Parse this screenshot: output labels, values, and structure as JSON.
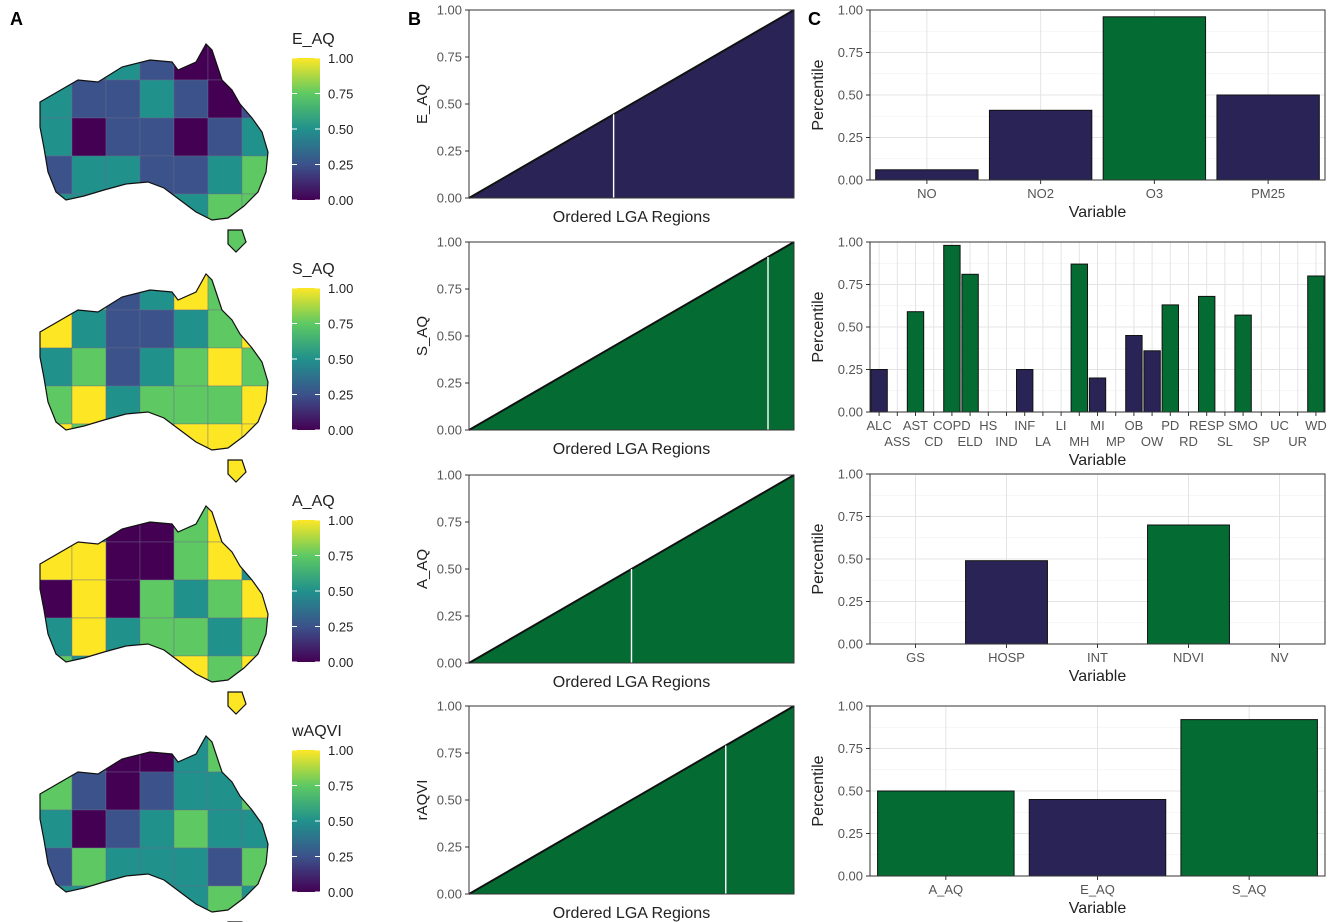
{
  "panel_letters": [
    "A",
    "B",
    "C"
  ],
  "colors": {
    "navy": "#2a2456",
    "green": "#046c33",
    "viridis": [
      "#440154",
      "#3b528b",
      "#21918c",
      "#5ec962",
      "#fde725"
    ]
  },
  "legend_ticks": [
    "1.00",
    "0.75",
    "0.50",
    "0.25",
    "0.00"
  ],
  "maps": [
    {
      "legend_title": "E_AQ"
    },
    {
      "legend_title": "S_AQ"
    },
    {
      "legend_title": "A_AQ"
    },
    {
      "legend_title": "wAQVI"
    }
  ],
  "chart_data": [
    {
      "type": "area",
      "panel": "B1",
      "ylabel": "E_AQ",
      "xlabel": "Ordered LGA Regions",
      "ylim": [
        0,
        1
      ],
      "yticks": [
        "0.00",
        "0.25",
        "0.50",
        "0.75",
        "1.00"
      ],
      "fill": "navy",
      "x": [
        0,
        1
      ],
      "y": [
        0,
        1
      ],
      "marker_x": 0.445
    },
    {
      "type": "area",
      "panel": "B2",
      "ylabel": "S_AQ",
      "xlabel": "Ordered LGA Regions",
      "ylim": [
        0,
        1
      ],
      "yticks": [
        "0.00",
        "0.25",
        "0.50",
        "0.75",
        "1.00"
      ],
      "fill": "green",
      "x": [
        0,
        1
      ],
      "y": [
        0,
        1
      ],
      "marker_x": 0.92
    },
    {
      "type": "area",
      "panel": "B3",
      "ylabel": "A_AQ",
      "xlabel": "Ordered LGA Regions",
      "ylim": [
        0,
        1
      ],
      "yticks": [
        "0.00",
        "0.25",
        "0.50",
        "0.75",
        "1.00"
      ],
      "fill": "green",
      "x": [
        0,
        1
      ],
      "y": [
        0,
        1
      ],
      "marker_x": 0.5
    },
    {
      "type": "area",
      "panel": "B4",
      "ylabel": "rAQVI",
      "xlabel": "Ordered LGA Regions",
      "ylim": [
        0,
        1
      ],
      "yticks": [
        "0.00",
        "0.25",
        "0.50",
        "0.75",
        "1.00"
      ],
      "fill": "green",
      "x": [
        0,
        1
      ],
      "y": [
        0,
        1
      ],
      "marker_x": 0.79
    },
    {
      "type": "bar",
      "panel": "C1",
      "xlabel": "Variable",
      "ylabel": "Percentile",
      "ylim": [
        0,
        1
      ],
      "yticks": [
        "0.00",
        "0.25",
        "0.50",
        "0.75",
        "1.00"
      ],
      "categories": [
        "NO",
        "NO2",
        "O3",
        "PM25"
      ],
      "values": [
        0.06,
        0.41,
        0.96,
        0.5
      ],
      "fills": [
        "navy",
        "navy",
        "green",
        "navy"
      ]
    },
    {
      "type": "bar",
      "panel": "C2",
      "xlabel": "Variable",
      "ylabel": "Percentile",
      "ylim": [
        0,
        1
      ],
      "yticks": [
        "0.00",
        "0.25",
        "0.50",
        "0.75",
        "1.00"
      ],
      "categories": [
        "ALC",
        "ASS",
        "AST",
        "CD",
        "COPD",
        "ELD",
        "HS",
        "IND",
        "INF",
        "LA",
        "LI",
        "MH",
        "MI",
        "MP",
        "OB",
        "OW",
        "PD",
        "RD",
        "RESP",
        "SL",
        "SMO",
        "SP",
        "UC",
        "UR",
        "WD"
      ],
      "values": [
        0.25,
        null,
        0.59,
        null,
        0.98,
        0.81,
        null,
        null,
        0.25,
        null,
        null,
        0.87,
        0.2,
        null,
        0.45,
        0.36,
        0.63,
        null,
        0.68,
        null,
        0.57,
        null,
        null,
        null,
        0.8
      ],
      "fills": [
        "navy",
        "",
        "green",
        "",
        "green",
        "green",
        "",
        "",
        "navy",
        "",
        "",
        "green",
        "navy",
        "",
        "navy",
        "navy",
        "green",
        "",
        "green",
        "",
        "green",
        "",
        "",
        "",
        "green"
      ]
    },
    {
      "type": "bar",
      "panel": "C3",
      "xlabel": "Variable",
      "ylabel": "Percentile",
      "ylim": [
        0,
        1
      ],
      "yticks": [
        "0.00",
        "0.25",
        "0.50",
        "0.75",
        "1.00"
      ],
      "categories": [
        "GS",
        "HOSP",
        "INT",
        "NDVI",
        "NV"
      ],
      "values": [
        null,
        0.49,
        null,
        0.7,
        null
      ],
      "fills": [
        "",
        "navy",
        "",
        "green",
        ""
      ]
    },
    {
      "type": "bar",
      "panel": "C4",
      "xlabel": "Variable",
      "ylabel": "Percentile",
      "ylim": [
        0,
        1
      ],
      "yticks": [
        "0.00",
        "0.25",
        "0.50",
        "0.75",
        "1.00"
      ],
      "categories": [
        "A_AQ",
        "E_AQ",
        "S_AQ"
      ],
      "values": [
        0.5,
        0.45,
        0.92
      ],
      "fills": [
        "green",
        "navy",
        "green"
      ]
    }
  ]
}
